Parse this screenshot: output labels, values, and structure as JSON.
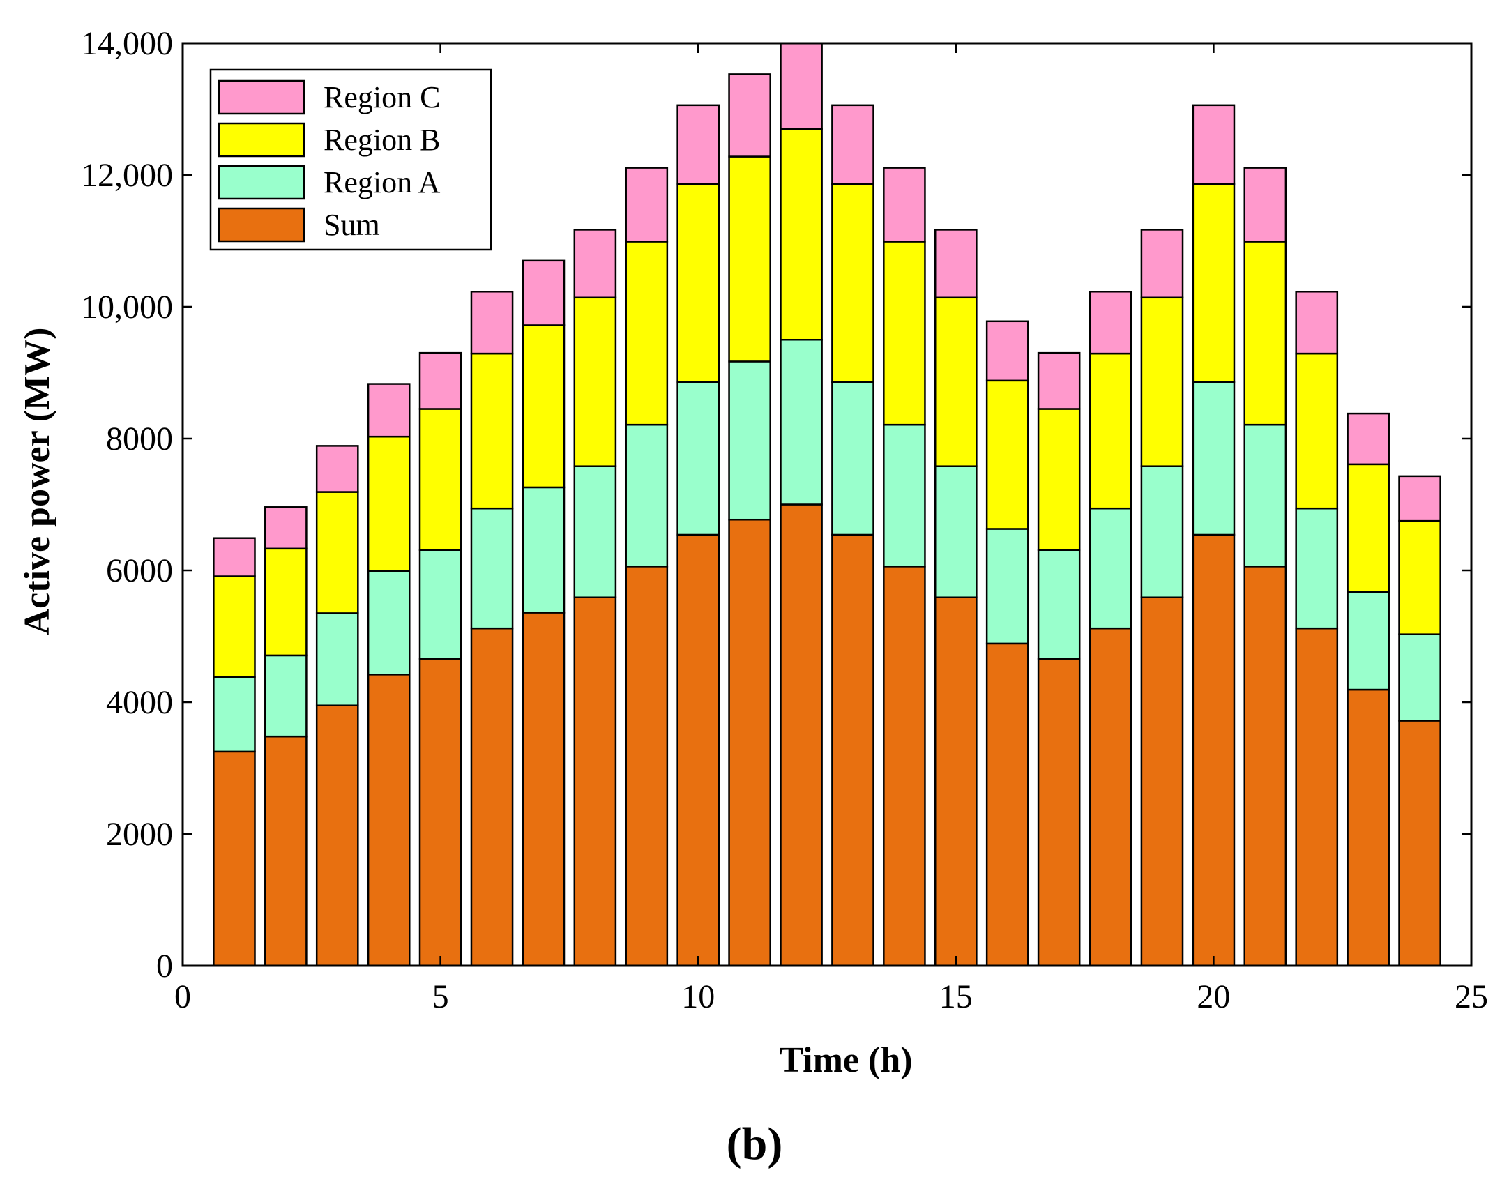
{
  "chart_data": {
    "type": "bar",
    "stacked": true,
    "title": "",
    "panel_label": "(b)",
    "xlabel": "Time  (h)",
    "ylabel": "Active power (MW)",
    "xlim": [
      0,
      25
    ],
    "ylim": [
      0,
      14000
    ],
    "xticks": [
      0,
      5,
      10,
      15,
      20,
      25
    ],
    "xtick_labels": [
      "0",
      "5",
      "10",
      "15",
      "20",
      "25"
    ],
    "yticks": [
      0,
      2000,
      4000,
      6000,
      8000,
      10000,
      12000,
      14000
    ],
    "ytick_labels": [
      "0",
      "2000",
      "4000",
      "6000",
      "8000",
      "10,000",
      "12,000",
      "14,000"
    ],
    "grid": false,
    "legend_position": "top-left",
    "legend_order": [
      "Region C",
      "Region B",
      "Region A",
      "Sum"
    ],
    "x": [
      1,
      2,
      3,
      4,
      5,
      6,
      7,
      8,
      9,
      10,
      11,
      12,
      13,
      14,
      15,
      16,
      17,
      18,
      19,
      20,
      21,
      22,
      23,
      24
    ],
    "series": [
      {
        "name": "Sum",
        "color": "#E87010",
        "values": [
          3250,
          3480,
          3950,
          4420,
          4660,
          5120,
          5360,
          5590,
          6060,
          6540,
          6770,
          7000,
          6540,
          6060,
          5590,
          4890,
          4660,
          5120,
          5590,
          6540,
          6060,
          5120,
          4190,
          3720
        ]
      },
      {
        "name": "Region A",
        "color": "#99FFCC",
        "values": [
          1130,
          1230,
          1400,
          1570,
          1650,
          1820,
          1900,
          1990,
          2150,
          2320,
          2400,
          2500,
          2320,
          2150,
          1990,
          1740,
          1650,
          1820,
          1990,
          2320,
          2150,
          1820,
          1480,
          1310
        ]
      },
      {
        "name": "Region B",
        "color": "#FFFF00",
        "values": [
          1530,
          1620,
          1840,
          2040,
          2140,
          2350,
          2460,
          2560,
          2780,
          3000,
          3110,
          3200,
          3000,
          2780,
          2560,
          2250,
          2140,
          2350,
          2560,
          3000,
          2780,
          2350,
          1940,
          1720
        ]
      },
      {
        "name": "Region C",
        "color": "#FF99CC",
        "values": [
          580,
          630,
          700,
          800,
          850,
          940,
          980,
          1030,
          1120,
          1200,
          1250,
          1300,
          1200,
          1120,
          1030,
          900,
          850,
          940,
          1030,
          1200,
          1120,
          940,
          770,
          680
        ]
      }
    ]
  }
}
